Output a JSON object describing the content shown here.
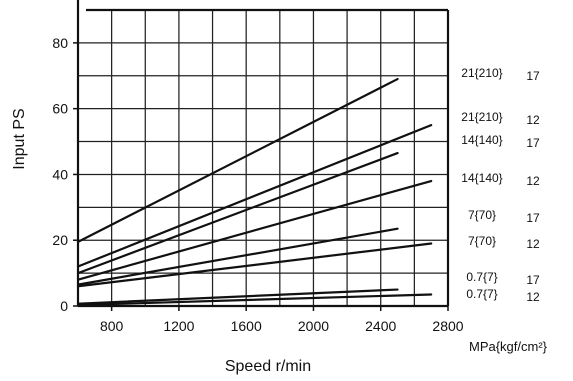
{
  "chart_data": {
    "type": "line",
    "title": "",
    "xlabel": "Speed r/min",
    "ylabel": "Input PS",
    "xlim": [
      600,
      2800
    ],
    "ylim": [
      0,
      90
    ],
    "x_ticks": [
      800,
      1200,
      1600,
      2000,
      2400,
      2800
    ],
    "y_ticks": [
      0,
      20,
      40,
      60,
      80
    ],
    "grid": true,
    "pressure_unit_label": "MPa{kgf/cm²}",
    "series": [
      {
        "pressure": "21{210}",
        "code": "17",
        "x": [
          600,
          2500
        ],
        "y": [
          19.5,
          69
        ]
      },
      {
        "pressure": "21{210}",
        "code": "12",
        "x": [
          600,
          2700
        ],
        "y": [
          12,
          55
        ]
      },
      {
        "pressure": "14{140}",
        "code": "17",
        "x": [
          600,
          2500
        ],
        "y": [
          10,
          46.5
        ]
      },
      {
        "pressure": "14{140}",
        "code": "12",
        "x": [
          600,
          2700
        ],
        "y": [
          8,
          38
        ]
      },
      {
        "pressure": "7{70}",
        "code": "17",
        "x": [
          600,
          2500
        ],
        "y": [
          6.5,
          23.5
        ]
      },
      {
        "pressure": "7{70}",
        "code": "12",
        "x": [
          600,
          2700
        ],
        "y": [
          6,
          19
        ]
      },
      {
        "pressure": "0.7{7}",
        "code": "17",
        "x": [
          600,
          2500
        ],
        "y": [
          0.7,
          5
        ]
      },
      {
        "pressure": "0.7{7}",
        "code": "12",
        "x": [
          600,
          2700
        ],
        "y": [
          0.3,
          3.5
        ]
      }
    ]
  }
}
